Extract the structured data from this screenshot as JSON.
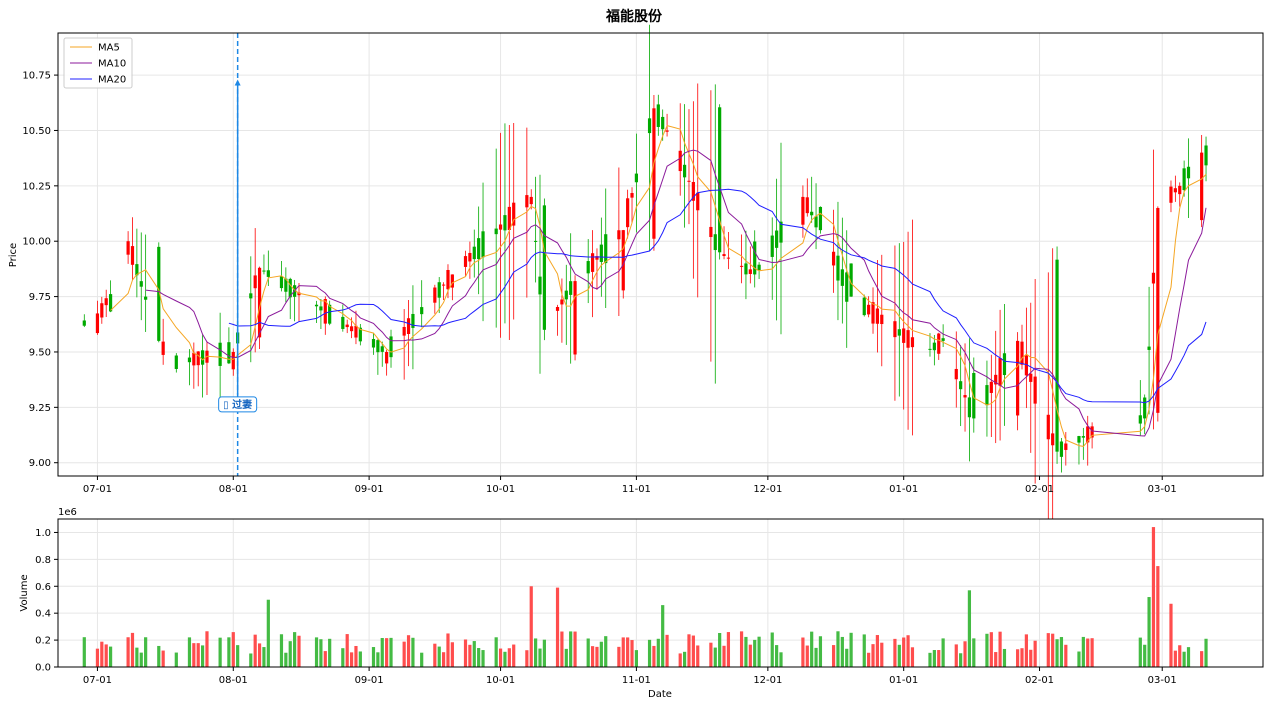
{
  "title": "福能股份",
  "chart_data": [
    {
      "type": "candlestick",
      "panel": "price",
      "ylabel": "Price",
      "ylim": [
        8.94,
        10.94
      ],
      "yticks": [
        9.0,
        9.25,
        9.5,
        9.75,
        10.0,
        10.25,
        10.5,
        10.75
      ],
      "ytick_labels": [
        "9.00",
        "9.25",
        "9.50",
        "9.75",
        "10.00",
        "10.25",
        "10.50",
        "10.75"
      ],
      "xlim_dates": [
        "2024-06-22",
        "2025-03-24"
      ],
      "xticks": [
        "2024-07-01",
        "2024-08-01",
        "2024-09-01",
        "2024-10-01",
        "2024-11-01",
        "2024-12-01",
        "2025-01-01",
        "2025-02-01",
        "2025-03-01"
      ],
      "xtick_labels": [
        "07-01",
        "08-01",
        "09-01",
        "10-01",
        "11-01",
        "12-01",
        "01-01",
        "02-01",
        "03-01"
      ],
      "grid": true,
      "legend": {
        "placement": "top-left",
        "entries": [
          "MA5",
          "MA10",
          "MA20"
        ]
      },
      "colors": {
        "up": "#ff0000",
        "down": "#00aa00",
        "ma5": "#f5a623",
        "ma10": "#8b1a9b",
        "ma20": "#1f1fff",
        "annotation": "#1e88e5"
      },
      "ohlc_series": [
        {
          "start": "2024-06-28",
          "n": 5,
          "start_close": 9.66,
          "seed": 11
        },
        {
          "start": "2024-07-08",
          "n": 7,
          "start_close": 9.95,
          "seed": 23
        },
        {
          "start": "2024-07-19",
          "n": 7,
          "start_close": 9.45,
          "seed": 37
        },
        {
          "start": "2024-07-31",
          "n": 13,
          "start_close": 9.5,
          "seed": 41
        },
        {
          "start": "2024-08-20",
          "n": 17,
          "start_close": 9.72,
          "seed": 53
        },
        {
          "start": "2024-09-13",
          "n": 17,
          "start_close": 9.78,
          "seed": 67
        },
        {
          "start": "2024-10-08",
          "n": 42,
          "start_close": 10.15,
          "seed": 71
        },
        {
          "start": "2024-12-09",
          "n": 20,
          "start_close": 10.05,
          "seed": 83
        },
        {
          "start": "2025-01-07",
          "n": 28,
          "start_close": 9.6,
          "seed": 97
        },
        {
          "start": "2025-02-24",
          "n": 12,
          "start_close": 9.3,
          "seed": 101
        }
      ],
      "key_closes": {
        "2024-07-08": 10.0,
        "2024-07-15": 9.55,
        "2024-07-18": 9.45,
        "2024-08-01": 9.5,
        "2024-08-07": 9.88,
        "2024-09-05": 9.5,
        "2024-09-20": 9.85,
        "2024-10-08": 10.2,
        "2024-10-11": 9.6,
        "2024-10-18": 9.82,
        "2024-10-29": 10.05,
        "2024-11-05": 10.6,
        "2024-11-08": 10.5,
        "2024-11-20": 9.95,
        "2024-11-28": 9.85,
        "2024-12-09": 10.2,
        "2024-12-13": 10.05,
        "2024-12-20": 9.75,
        "2025-01-06": 9.5,
        "2025-01-10": 9.55,
        "2025-01-17": 9.2,
        "2025-01-27": 9.55,
        "2025-02-05": 9.05,
        "2025-02-14": 9.15,
        "2025-02-25": 9.2,
        "2025-02-28": 10.15,
        "2025-03-05": 10.25,
        "2025-03-10": 10.4
      },
      "annotation": {
        "date": "2024-08-02",
        "label": "▯ 过妻",
        "arrow_to": 10.73,
        "label_at": 9.27
      }
    },
    {
      "type": "bar",
      "panel": "volume",
      "ylabel": "Volume",
      "xlabel": "Date",
      "offset_label": "1e6",
      "ylim": [
        0,
        1.1
      ],
      "yticks": [
        0.0,
        0.2,
        0.4,
        0.6,
        0.8,
        1.0
      ],
      "ytick_labels": [
        "0.0",
        "0.2",
        "0.4",
        "0.6",
        "0.8",
        "1.0"
      ],
      "grid": true,
      "colors": {
        "up": "#ff4d4d",
        "down": "#44bb44"
      },
      "notable_volumes": {
        "2024-08-09": 0.5,
        "2024-10-08": 0.6,
        "2024-10-14": 0.59,
        "2024-11-07": 0.46,
        "2025-01-16": 0.57,
        "2025-02-26": 0.52,
        "2025-02-27": 1.04,
        "2025-02-28": 0.75,
        "2025-03-03": 0.47
      }
    }
  ]
}
